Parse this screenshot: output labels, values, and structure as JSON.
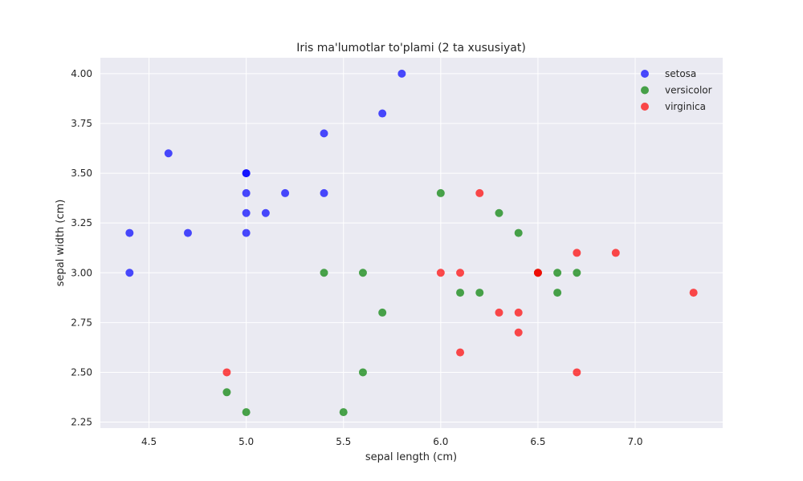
{
  "chart_data": {
    "type": "scatter",
    "title": "Iris ma'lumotlar to'plami (2 ta xususiyat)",
    "xlabel": "sepal length (cm)",
    "ylabel": "sepal width (cm)",
    "xlim": [
      4.25,
      7.45
    ],
    "ylim": [
      2.22,
      4.08
    ],
    "xticks": [
      4.5,
      5.0,
      5.5,
      6.0,
      6.5,
      7.0
    ],
    "xtick_labels": [
      "4.5",
      "5.0",
      "5.5",
      "6.0",
      "6.5",
      "7.0"
    ],
    "yticks": [
      2.25,
      2.5,
      2.75,
      3.0,
      3.25,
      3.5,
      3.75,
      4.0
    ],
    "ytick_labels": [
      "2.25",
      "2.50",
      "2.75",
      "3.00",
      "3.25",
      "3.50",
      "3.75",
      "4.00"
    ],
    "grid": true,
    "background": "#eaeaf2",
    "legend_position": "top-right",
    "series": [
      {
        "name": "setosa",
        "color": "#0000ff",
        "points": [
          [
            4.4,
            3.0
          ],
          [
            4.4,
            3.2
          ],
          [
            4.6,
            3.6
          ],
          [
            4.7,
            3.2
          ],
          [
            5.0,
            3.5
          ],
          [
            5.0,
            3.5
          ],
          [
            5.0,
            3.4
          ],
          [
            5.0,
            3.3
          ],
          [
            5.0,
            3.2
          ],
          [
            5.1,
            3.3
          ],
          [
            5.2,
            3.4
          ],
          [
            5.4,
            3.7
          ],
          [
            5.4,
            3.4
          ],
          [
            5.7,
            3.8
          ],
          [
            5.8,
            4.0
          ]
        ]
      },
      {
        "name": "versicolor",
        "color": "#008000",
        "points": [
          [
            4.9,
            2.4
          ],
          [
            5.0,
            2.3
          ],
          [
            5.4,
            3.0
          ],
          [
            5.5,
            2.3
          ],
          [
            5.6,
            3.0
          ],
          [
            5.6,
            2.5
          ],
          [
            5.7,
            2.8
          ],
          [
            6.0,
            3.4
          ],
          [
            6.1,
            2.9
          ],
          [
            6.2,
            2.9
          ],
          [
            6.3,
            3.3
          ],
          [
            6.4,
            3.2
          ],
          [
            6.5,
            3.0
          ],
          [
            6.6,
            3.0
          ],
          [
            6.6,
            2.9
          ],
          [
            6.7,
            3.0
          ]
        ]
      },
      {
        "name": "virginica",
        "color": "#ff0000",
        "points": [
          [
            4.9,
            2.5
          ],
          [
            6.0,
            3.0
          ],
          [
            6.1,
            3.0
          ],
          [
            6.1,
            2.6
          ],
          [
            6.2,
            3.4
          ],
          [
            6.3,
            2.8
          ],
          [
            6.4,
            2.8
          ],
          [
            6.4,
            2.7
          ],
          [
            6.5,
            3.0
          ],
          [
            6.5,
            3.0
          ],
          [
            6.7,
            3.1
          ],
          [
            6.7,
            2.5
          ],
          [
            6.9,
            3.1
          ],
          [
            7.3,
            2.9
          ]
        ]
      }
    ]
  }
}
